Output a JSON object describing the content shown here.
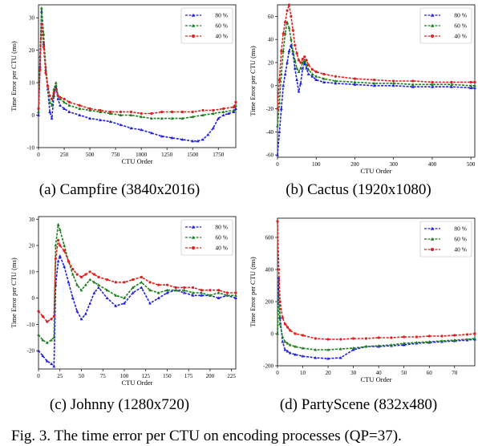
{
  "figure_caption": "Fig. 3.  The time error per CTU on encoding processes (QP=37).",
  "colors": {
    "80": "#1f1fe0",
    "60": "#1e7d1e",
    "40": "#e01f1f"
  },
  "chart_data": [
    {
      "type": "line",
      "caption": "(a)  Campfire (3840x2016)",
      "xlabel": "CTU Order",
      "ylabel": "Time Error per CTU (ms)",
      "xlim": [
        0,
        1920
      ],
      "ylim": [
        -10,
        34
      ],
      "xticks": [
        0,
        250,
        500,
        750,
        1000,
        1250,
        1500,
        1750
      ],
      "yticks": [
        -10,
        0,
        10,
        20,
        30
      ],
      "legend_position": "top-right",
      "series": [
        {
          "name": "80 %",
          "color": "#1f1fe0",
          "marker": "triangle",
          "x": [
            0,
            15,
            30,
            50,
            70,
            90,
            110,
            130,
            150,
            170,
            190,
            210,
            250,
            300,
            400,
            500,
            600,
            700,
            800,
            900,
            1000,
            1100,
            1200,
            1300,
            1400,
            1500,
            1550,
            1600,
            1650,
            1700,
            1750,
            1800,
            1850,
            1900,
            1920
          ],
          "y": [
            0,
            15,
            32,
            22,
            14,
            8,
            1,
            -1,
            6,
            9,
            5,
            3,
            2,
            1,
            0,
            -1,
            -1.5,
            -2,
            -3,
            -4,
            -4.5,
            -5.5,
            -6.5,
            -7,
            -7.5,
            -8,
            -8,
            -7.5,
            -6,
            -4,
            -1,
            0,
            0.5,
            1,
            2
          ]
        },
        {
          "name": "60 %",
          "color": "#1e7d1e",
          "marker": "triangle",
          "x": [
            0,
            15,
            30,
            50,
            70,
            90,
            110,
            130,
            150,
            170,
            190,
            210,
            250,
            300,
            400,
            500,
            600,
            700,
            800,
            900,
            1000,
            1100,
            1200,
            1300,
            1400,
            1500,
            1600,
            1700,
            1800,
            1900,
            1920
          ],
          "y": [
            1,
            18,
            33,
            25,
            15,
            9,
            4,
            3,
            8,
            10,
            6,
            5,
            4,
            3,
            2,
            1.5,
            1,
            0.5,
            0,
            0,
            -0.5,
            -1,
            -1,
            -1,
            -1,
            -0.5,
            0,
            0.5,
            1,
            1.5,
            3
          ]
        },
        {
          "name": "40 %",
          "color": "#e01f1f",
          "marker": "circle",
          "x": [
            0,
            15,
            30,
            50,
            70,
            90,
            110,
            130,
            150,
            170,
            190,
            210,
            250,
            300,
            400,
            500,
            600,
            700,
            800,
            900,
            1000,
            1100,
            1200,
            1300,
            1400,
            1500,
            1600,
            1700,
            1800,
            1900,
            1920
          ],
          "y": [
            2,
            14,
            28,
            21,
            13,
            9,
            6,
            5,
            7,
            8,
            6,
            5.5,
            5,
            4,
            3,
            2,
            1.5,
            1,
            1,
            1,
            0.5,
            0.5,
            1,
            1,
            1,
            1,
            1.5,
            1.5,
            2,
            2.5,
            4
          ]
        }
      ]
    },
    {
      "type": "line",
      "caption": "(b)  Cactus (1920x1080)",
      "xlabel": "CTU Order",
      "ylabel": "Time Error per CTU (ms)",
      "xlim": [
        0,
        510
      ],
      "ylim": [
        -62,
        70
      ],
      "xticks": [
        0,
        100,
        200,
        300,
        400,
        500
      ],
      "yticks": [
        -60,
        -40,
        -20,
        0,
        20,
        40,
        60
      ],
      "legend_position": "top-right",
      "series": [
        {
          "name": "80 %",
          "color": "#1f1fe0",
          "marker": "triangle",
          "x": [
            0,
            5,
            10,
            15,
            20,
            25,
            30,
            35,
            40,
            45,
            50,
            55,
            60,
            65,
            70,
            75,
            80,
            90,
            100,
            120,
            150,
            200,
            250,
            300,
            350,
            400,
            450,
            500,
            510
          ],
          "y": [
            -60,
            -40,
            -20,
            0,
            10,
            20,
            30,
            35,
            28,
            15,
            5,
            -5,
            2,
            15,
            20,
            15,
            10,
            8,
            5,
            3,
            2,
            1,
            0,
            0,
            -1,
            -1,
            -1,
            -2,
            -2
          ]
        },
        {
          "name": "60 %",
          "color": "#1e7d1e",
          "marker": "triangle",
          "x": [
            0,
            5,
            10,
            15,
            20,
            25,
            30,
            35,
            40,
            45,
            50,
            55,
            60,
            65,
            70,
            75,
            80,
            90,
            100,
            120,
            150,
            200,
            250,
            300,
            350,
            400,
            450,
            500,
            510
          ],
          "y": [
            -35,
            -15,
            10,
            30,
            45,
            55,
            50,
            40,
            30,
            22,
            15,
            12,
            15,
            20,
            22,
            18,
            14,
            10,
            8,
            6,
            4,
            3,
            2,
            2,
            1,
            1,
            1,
            0,
            0
          ]
        },
        {
          "name": "40 %",
          "color": "#e01f1f",
          "marker": "circle",
          "x": [
            0,
            5,
            10,
            15,
            20,
            25,
            30,
            35,
            40,
            45,
            50,
            55,
            60,
            65,
            70,
            75,
            80,
            90,
            100,
            120,
            150,
            200,
            250,
            300,
            350,
            400,
            450,
            500,
            510
          ],
          "y": [
            -20,
            5,
            30,
            45,
            55,
            65,
            70,
            60,
            48,
            35,
            28,
            22,
            20,
            23,
            25,
            22,
            18,
            14,
            12,
            10,
            8,
            6,
            5,
            4,
            4,
            3,
            3,
            3,
            3
          ]
        }
      ]
    },
    {
      "type": "line",
      "caption": "(c)  Johnny (1280x720)",
      "xlabel": "CTU Order",
      "ylabel": "Time Error per CTU (ms)",
      "xlim": [
        0,
        230
      ],
      "ylim": [
        -27,
        31
      ],
      "xticks": [
        0,
        25,
        50,
        75,
        100,
        125,
        150,
        175,
        200,
        225
      ],
      "yticks": [
        -20,
        -10,
        0,
        10,
        20,
        30
      ],
      "legend_position": "top-right",
      "series": [
        {
          "name": "80 %",
          "color": "#1f1fe0",
          "marker": "triangle",
          "x": [
            0,
            5,
            10,
            15,
            18,
            20,
            23,
            25,
            30,
            35,
            40,
            45,
            50,
            55,
            60,
            65,
            70,
            80,
            90,
            100,
            110,
            120,
            130,
            140,
            150,
            160,
            170,
            180,
            190,
            200,
            210,
            220,
            230
          ],
          "y": [
            -20,
            -22,
            -24,
            -25,
            -26,
            5,
            14,
            16,
            12,
            6,
            0,
            -5,
            -8,
            -6,
            -2,
            2,
            4,
            0,
            -3,
            -2,
            2,
            4,
            -2,
            0,
            2,
            3,
            2,
            1,
            1,
            1,
            0,
            1,
            0
          ]
        },
        {
          "name": "60 %",
          "color": "#1e7d1e",
          "marker": "triangle",
          "x": [
            0,
            5,
            10,
            15,
            18,
            20,
            23,
            25,
            30,
            35,
            40,
            45,
            50,
            55,
            60,
            65,
            70,
            80,
            90,
            100,
            110,
            120,
            130,
            140,
            150,
            160,
            170,
            180,
            190,
            200,
            210,
            220,
            230
          ],
          "y": [
            -14,
            -16,
            -17,
            -16,
            -15,
            20,
            28,
            26,
            20,
            14,
            9,
            5,
            3,
            5,
            7,
            6,
            5,
            3,
            1,
            0,
            4,
            6,
            3,
            2,
            3,
            3,
            3,
            2,
            2,
            1,
            2,
            1,
            1
          ]
        },
        {
          "name": "40 %",
          "color": "#e01f1f",
          "marker": "circle",
          "x": [
            0,
            5,
            10,
            15,
            18,
            20,
            23,
            25,
            30,
            35,
            40,
            45,
            50,
            55,
            60,
            65,
            70,
            80,
            90,
            100,
            110,
            120,
            130,
            140,
            150,
            160,
            170,
            180,
            190,
            200,
            210,
            220,
            230
          ],
          "y": [
            -5,
            -7,
            -9,
            -8,
            -7,
            15,
            22,
            20,
            18,
            14,
            11,
            9,
            8,
            9,
            10,
            9,
            8,
            7,
            6,
            6,
            7,
            8,
            6,
            5,
            5,
            4,
            4,
            4,
            3,
            3,
            3,
            2,
            2
          ]
        }
      ]
    },
    {
      "type": "line",
      "caption": "(d)  PartyScene (832x480)",
      "xlabel": "CTU Order",
      "ylabel": "Time Error per CTU (ms)",
      "xlim": [
        0,
        78
      ],
      "ylim": [
        -200,
        720
      ],
      "xticks": [
        0,
        10,
        20,
        30,
        40,
        50,
        60,
        70
      ],
      "yticks": [
        -200,
        0,
        200,
        400,
        600
      ],
      "legend_position": "top-right",
      "series": [
        {
          "name": "80 %",
          "color": "#1f1fe0",
          "marker": "triangle",
          "x": [
            0,
            0.5,
            1,
            2,
            3,
            4,
            5,
            7,
            10,
            15,
            20,
            25,
            30,
            35,
            40,
            45,
            50,
            55,
            60,
            65,
            70,
            75,
            78
          ],
          "y": [
            0,
            350,
            100,
            -50,
            -100,
            -110,
            -120,
            -130,
            -140,
            -150,
            -155,
            -150,
            -100,
            -80,
            -80,
            -75,
            -70,
            -60,
            -55,
            -50,
            -45,
            -40,
            -35
          ]
        },
        {
          "name": "60 %",
          "color": "#1e7d1e",
          "marker": "triangle",
          "x": [
            0,
            0.5,
            1,
            2,
            3,
            4,
            5,
            7,
            10,
            15,
            20,
            25,
            30,
            35,
            40,
            45,
            50,
            55,
            60,
            65,
            70,
            75,
            78
          ],
          "y": [
            0,
            250,
            60,
            -20,
            -50,
            -60,
            -70,
            -80,
            -90,
            -100,
            -100,
            -95,
            -90,
            -80,
            -75,
            -70,
            -60,
            -55,
            -50,
            -45,
            -40,
            -35,
            -30
          ]
        },
        {
          "name": "40 %",
          "color": "#e01f1f",
          "marker": "circle",
          "x": [
            0,
            0.5,
            1,
            2,
            3,
            4,
            5,
            7,
            10,
            15,
            20,
            25,
            30,
            35,
            40,
            45,
            50,
            55,
            60,
            65,
            70,
            75,
            78
          ],
          "y": [
            700,
            400,
            200,
            100,
            60,
            40,
            20,
            0,
            -10,
            -30,
            -35,
            -35,
            -30,
            -30,
            -25,
            -25,
            -20,
            -20,
            -15,
            -15,
            -10,
            -5,
            0
          ]
        }
      ]
    }
  ]
}
